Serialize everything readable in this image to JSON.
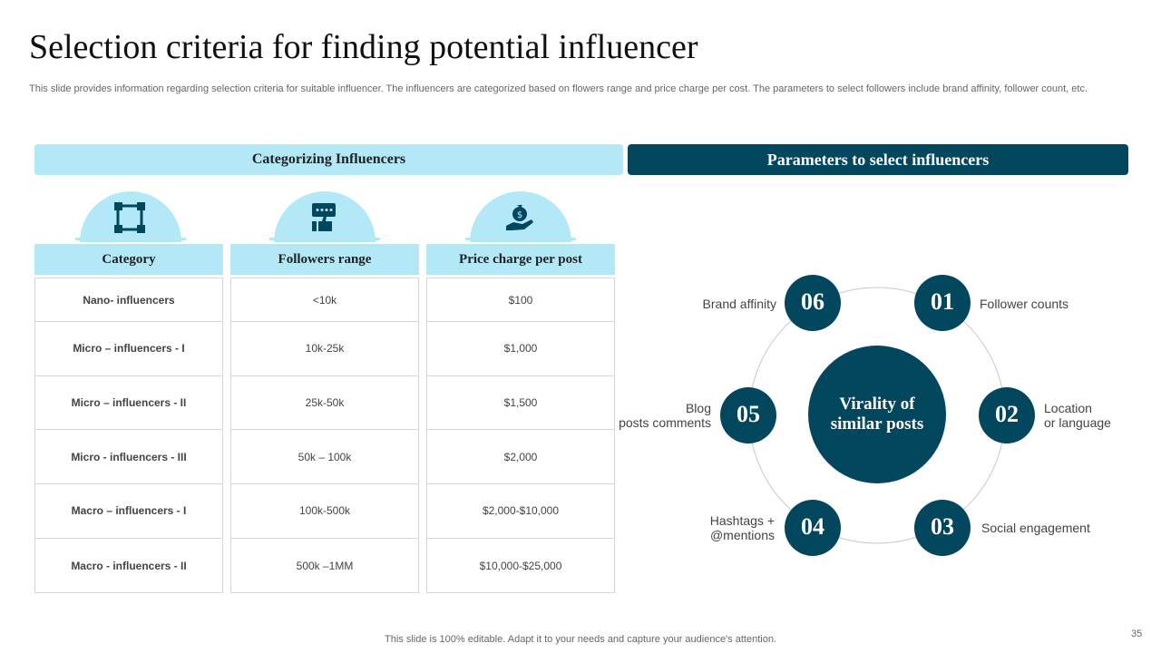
{
  "title": "Selection criteria for finding potential influencer",
  "subtitle": "This slide provides information regarding selection criteria for suitable influencer. The influencers are categorized based on flowers range and price charge per cost. The parameters to select followers include brand affinity, follower count, etc.",
  "left_header": "Categorizing Influencers",
  "right_header": "Parameters to select influencers",
  "icons": [
    "network-icon",
    "feedback-thumbs-up-icon",
    "money-hand-icon"
  ],
  "table": {
    "headers": [
      "Category",
      "Followers range",
      "Price charge per post"
    ],
    "rows": [
      [
        "Nano- influencers",
        "<10k",
        "$100"
      ],
      [
        "Micro – influencers - I",
        "10k-25k",
        "$1,000"
      ],
      [
        "Micro – influencers - II",
        "25k-50k",
        "$1,500"
      ],
      [
        "Micro - influencers - III",
        "50k – 100k",
        "$2,000"
      ],
      [
        "Macro – influencers - I",
        "100k-500k",
        "$2,000-$10,000"
      ],
      [
        "Macro - influencers - II",
        "500k –1MM",
        "$10,000-$25,000"
      ]
    ]
  },
  "wheel": {
    "center_line1": "Virality of",
    "center_line2": "similar posts",
    "nodes": [
      {
        "num": "01",
        "label": "Follower counts"
      },
      {
        "num": "02",
        "label_line1": "Location",
        "label_line2": "or language"
      },
      {
        "num": "03",
        "label": "Social engagement"
      },
      {
        "num": "04",
        "label_line1": "Hashtags +",
        "label_line2": "@mentions"
      },
      {
        "num": "05",
        "label_line1": "Blog",
        "label_line2": "posts comments"
      },
      {
        "num": "06",
        "label": "Brand affinity"
      }
    ]
  },
  "colors": {
    "dark_teal": "#03475f",
    "light_blue": "#b3e8f7"
  },
  "footer": "This slide is 100% editable. Adapt it to your needs and capture your audience's attention.",
  "page_number": "35"
}
